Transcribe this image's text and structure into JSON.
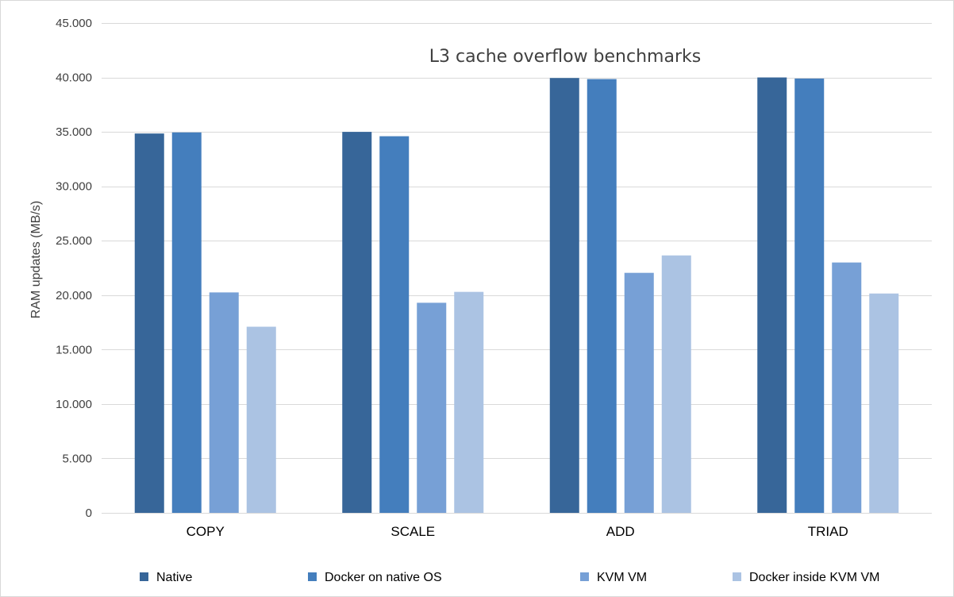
{
  "chart_data": {
    "type": "bar",
    "title": "L3 cache overflow benchmarks",
    "xlabel": "",
    "ylabel": "RAM updates (MB/s)",
    "ylim": [
      0,
      45000
    ],
    "y_ticks": [
      0,
      5000,
      10000,
      15000,
      20000,
      25000,
      30000,
      35000,
      40000,
      45000
    ],
    "y_tick_labels": [
      "0",
      "5.000",
      "10.000",
      "15.000",
      "20.000",
      "25.000",
      "30.000",
      "35.000",
      "40.000",
      "45.000"
    ],
    "grid": true,
    "legend_position": "bottom",
    "categories": [
      "COPY",
      "SCALE",
      "ADD",
      "TRIAD"
    ],
    "series": [
      {
        "name": "Native",
        "color": "#376699",
        "values": [
          34850,
          35000,
          39950,
          40000
        ]
      },
      {
        "name": "Docker on native OS",
        "color": "#447ebd",
        "values": [
          34950,
          34600,
          39850,
          39900
        ]
      },
      {
        "name": "KVM VM",
        "color": "#77a0d6",
        "values": [
          20250,
          19300,
          22050,
          23000
        ]
      },
      {
        "name": "Docker inside KVM VM",
        "color": "#abc3e3",
        "values": [
          17100,
          20300,
          23650,
          20150
        ]
      }
    ]
  }
}
